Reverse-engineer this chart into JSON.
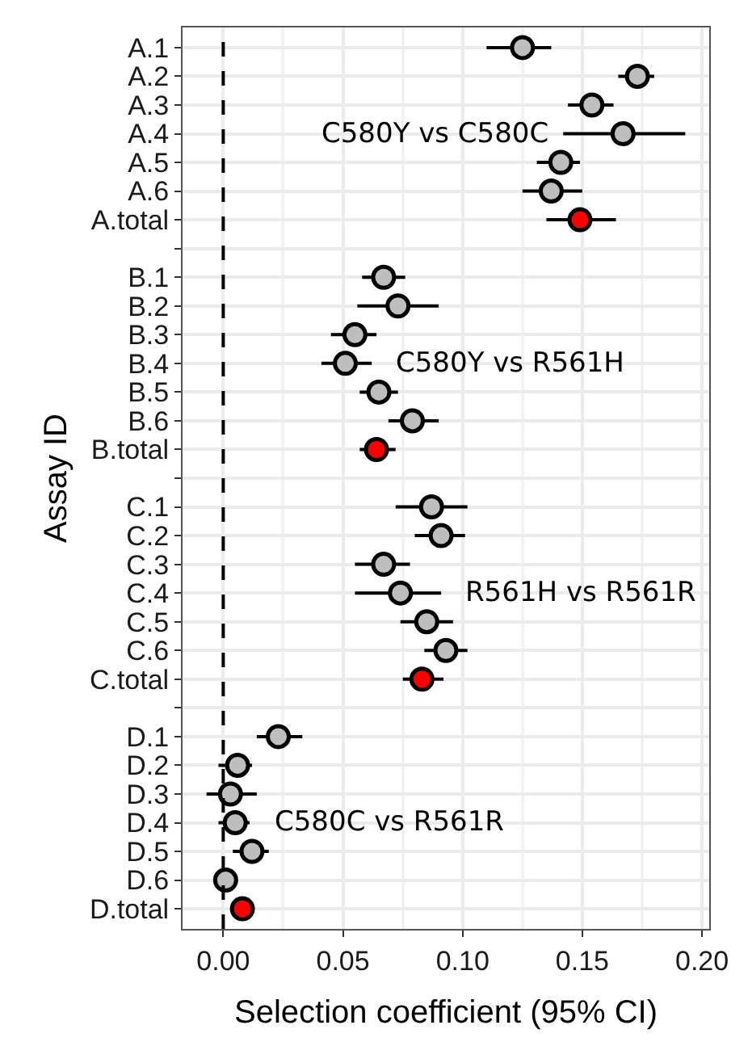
{
  "chart_data": {
    "type": "scatter",
    "ylabel": "Assay ID",
    "xlabel": "Selection coefficient (95% CI)",
    "categories": [
      "A.1",
      "A.2",
      "A.3",
      "A.4",
      "A.5",
      "A.6",
      "A.total",
      null,
      "B.1",
      "B.2",
      "B.3",
      "B.4",
      "B.5",
      "B.6",
      "B.total",
      null,
      "C.1",
      "C.2",
      "C.3",
      "C.4",
      "C.5",
      "C.6",
      "C.total",
      null,
      "D.1",
      "D.2",
      "D.3",
      "D.4",
      "D.5",
      "D.6",
      "D.total"
    ],
    "values": [
      0.125,
      0.173,
      0.154,
      0.167,
      0.141,
      0.137,
      0.149,
      null,
      0.067,
      0.073,
      0.055,
      0.051,
      0.065,
      0.079,
      0.064,
      null,
      0.087,
      0.091,
      0.067,
      0.074,
      0.085,
      0.093,
      0.083,
      null,
      0.023,
      0.006,
      0.003,
      0.005,
      0.012,
      0.001,
      0.008
    ],
    "errors": [
      [
        0.11,
        0.137
      ],
      [
        0.165,
        0.18
      ],
      [
        0.144,
        0.163
      ],
      [
        0.142,
        0.193
      ],
      [
        0.131,
        0.149
      ],
      [
        0.125,
        0.15
      ],
      [
        0.135,
        0.164
      ],
      null,
      [
        0.058,
        0.076
      ],
      [
        0.056,
        0.09
      ],
      [
        0.045,
        0.064
      ],
      [
        0.041,
        0.062
      ],
      [
        0.057,
        0.073
      ],
      [
        0.069,
        0.09
      ],
      [
        0.057,
        0.072
      ],
      null,
      [
        0.072,
        0.102
      ],
      [
        0.08,
        0.101
      ],
      [
        0.055,
        0.078
      ],
      [
        0.055,
        0.091
      ],
      [
        0.074,
        0.096
      ],
      [
        0.084,
        0.102
      ],
      [
        0.075,
        0.092
      ],
      null,
      [
        0.014,
        0.033
      ],
      [
        -0.002,
        0.012
      ],
      [
        -0.007,
        0.014
      ],
      [
        -0.002,
        0.011
      ],
      [
        0.004,
        0.019
      ],
      null,
      [
        0.003,
        0.013
      ]
    ],
    "colors": [
      "#bebebe",
      "#bebebe",
      "#bebebe",
      "#bebebe",
      "#bebebe",
      "#bebebe",
      "#ff0000",
      "#bebebe",
      "#bebebe",
      "#bebebe",
      "#bebebe",
      "#bebebe",
      "#bebebe",
      "#bebebe",
      "#ff0000",
      "#bebebe",
      "#bebebe",
      "#bebebe",
      "#bebebe",
      "#bebebe",
      "#bebebe",
      "#bebebe",
      "#ff0000",
      "#bebebe",
      "#bebebe",
      "#bebebe",
      "#bebebe",
      "#bebebe",
      "#bebebe",
      "#bebebe",
      "#ff0000"
    ],
    "orientation": "horizontal",
    "xlim": [
      -0.017,
      0.203
    ],
    "xticks": [
      {
        "value": 0,
        "label": "0.00"
      },
      {
        "value": 0.05,
        "label": "0.05"
      },
      {
        "value": 0.1,
        "label": "0.10"
      },
      {
        "value": 0.15,
        "label": "0.15"
      },
      {
        "value": 0.2,
        "label": "0.20"
      }
    ],
    "ref_lines": [
      {
        "axis": "x",
        "value": 0,
        "line_style": "dashed",
        "color": "#000000"
      }
    ],
    "annotations": [
      "C580Y vs C580C",
      "C580Y vs R561H",
      "R561H vs R561R",
      "C580C vs R561R"
    ],
    "grid": true,
    "marker": "circle",
    "legend": false
  }
}
